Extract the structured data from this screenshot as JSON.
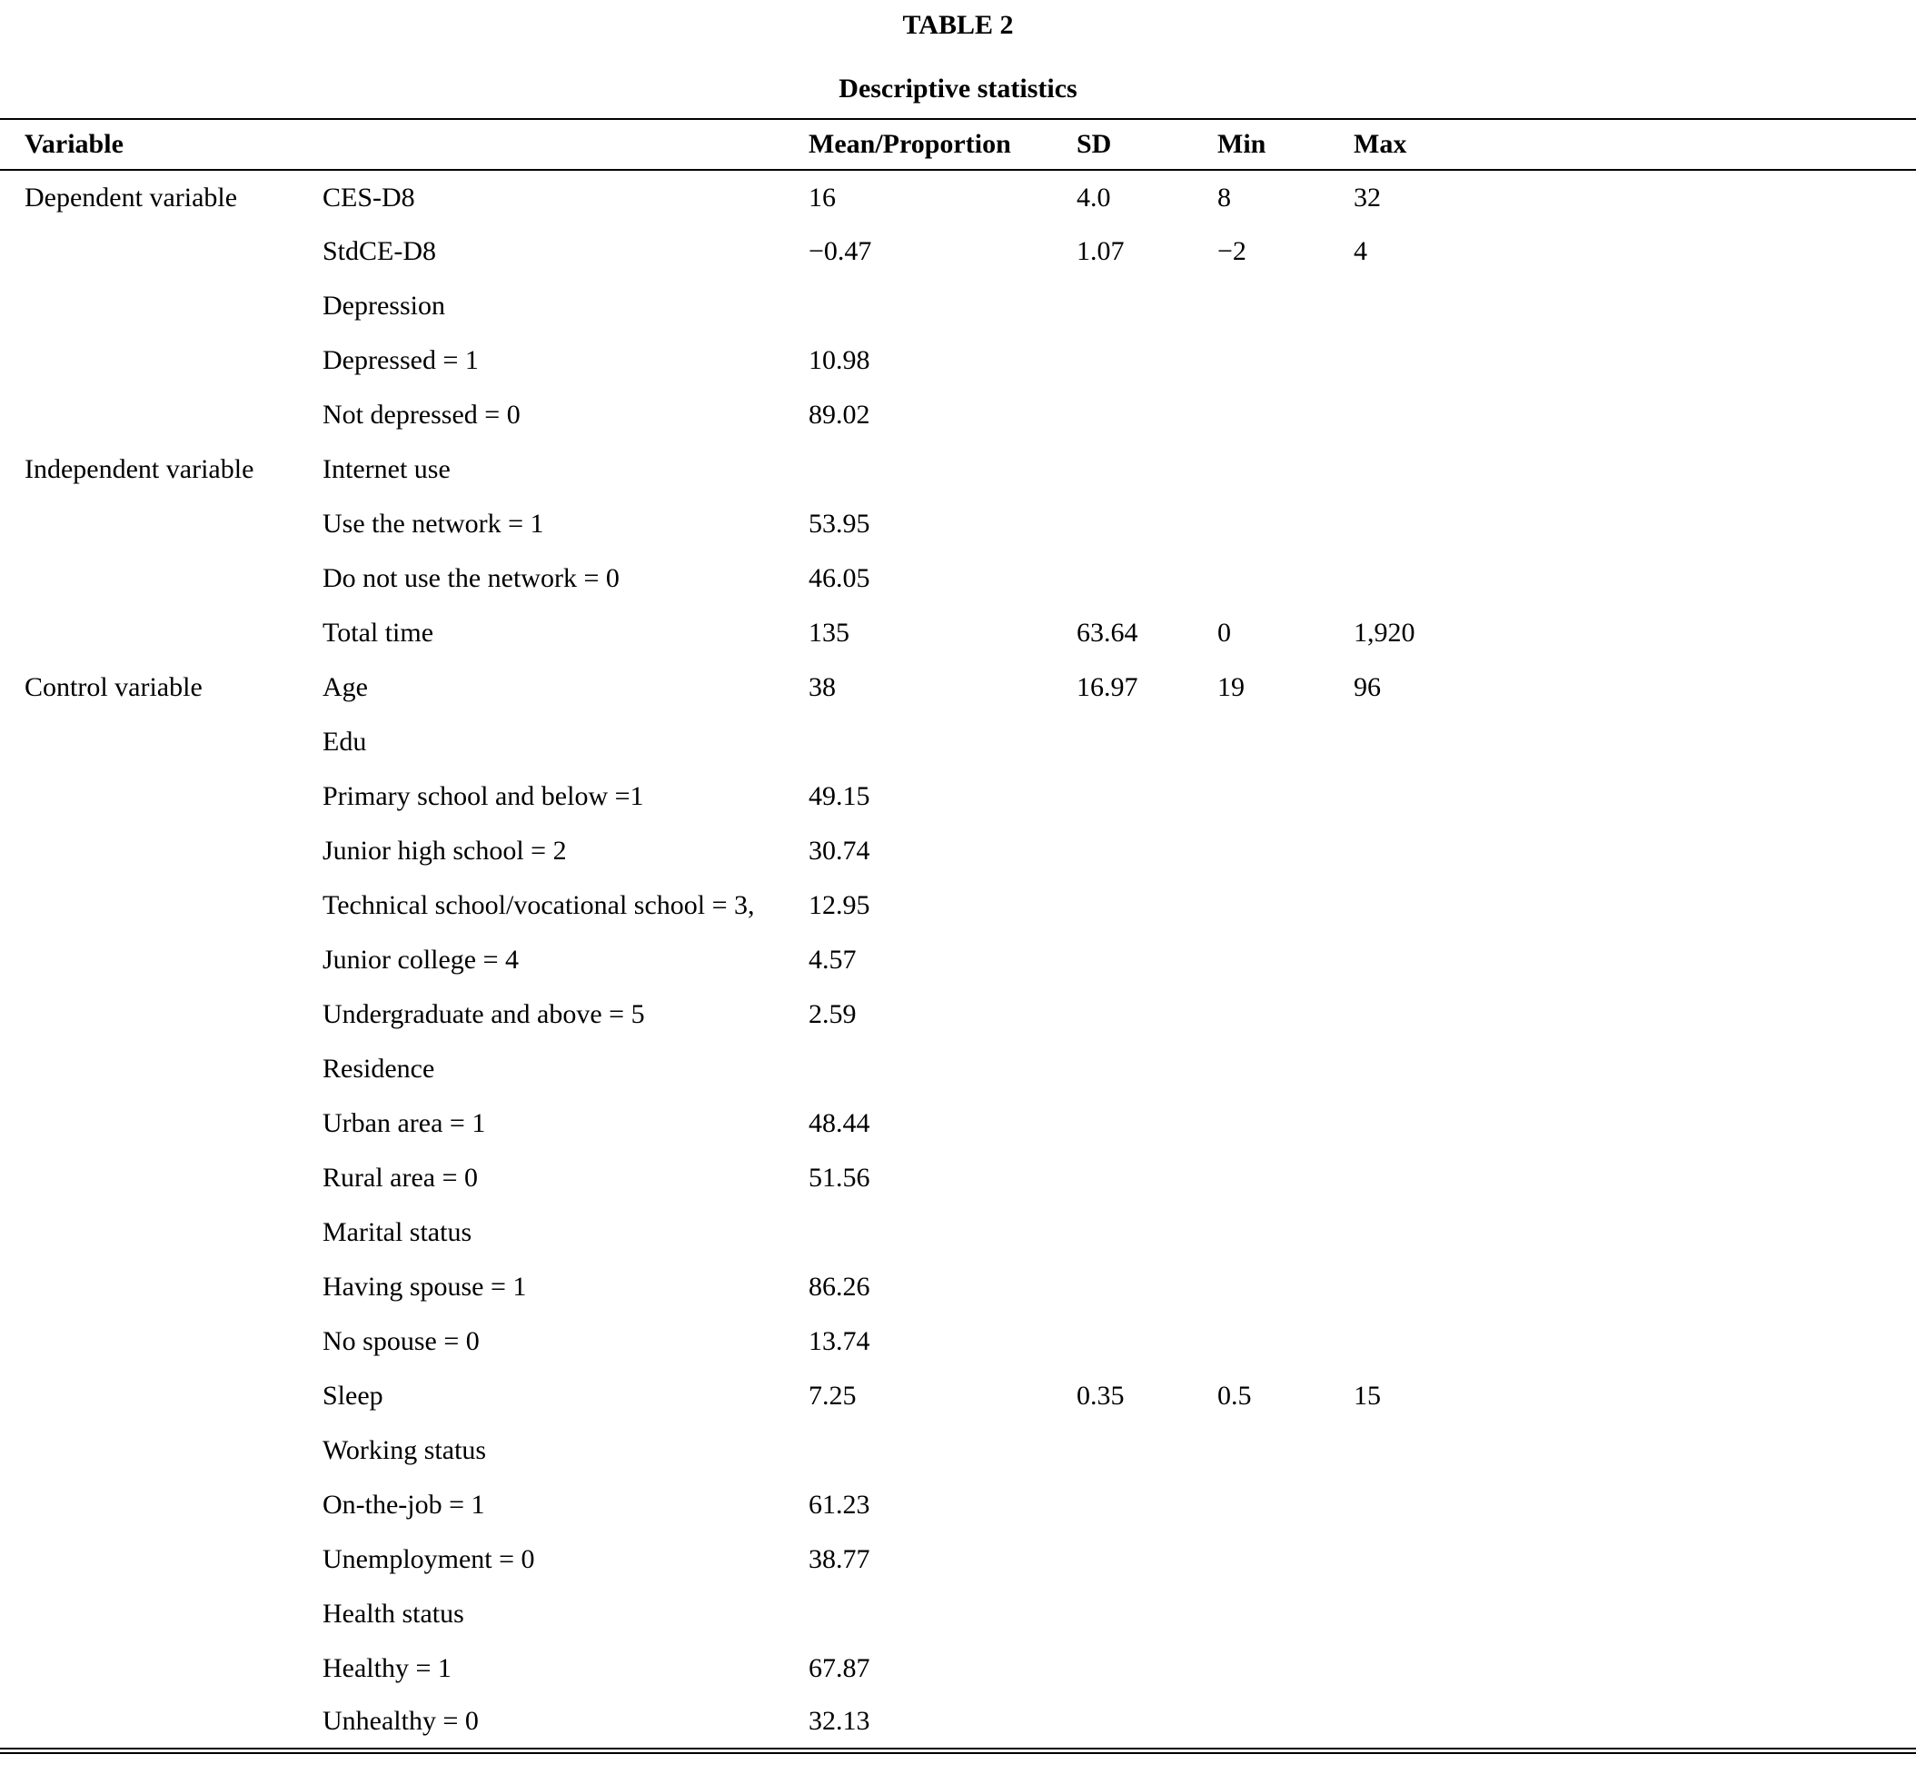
{
  "page": {
    "table_label": "TABLE 2",
    "table_title": "Descriptive statistics"
  },
  "table": {
    "columns": [
      "Variable",
      "",
      "Mean/Proportion",
      "SD",
      "Min",
      "Max"
    ],
    "rows": [
      {
        "group": "Dependent variable",
        "label": "CES-D8",
        "mean": "16",
        "sd": "4.0",
        "min": "8",
        "max": "32"
      },
      {
        "group": "",
        "label": "StdCE-D8",
        "mean": "−0.47",
        "sd": "1.07",
        "min": "−2",
        "max": "4"
      },
      {
        "group": "",
        "label": "Depression",
        "mean": "",
        "sd": "",
        "min": "",
        "max": ""
      },
      {
        "group": "",
        "label": "Depressed = 1",
        "mean": "10.98",
        "sd": "",
        "min": "",
        "max": ""
      },
      {
        "group": "",
        "label": "Not depressed = 0",
        "mean": "89.02",
        "sd": "",
        "min": "",
        "max": ""
      },
      {
        "group": "Independent variable",
        "label": "Internet use",
        "mean": "",
        "sd": "",
        "min": "",
        "max": ""
      },
      {
        "group": "",
        "label": "Use the network = 1",
        "mean": "53.95",
        "sd": "",
        "min": "",
        "max": ""
      },
      {
        "group": "",
        "label": "Do not use the network = 0",
        "mean": "46.05",
        "sd": "",
        "min": "",
        "max": ""
      },
      {
        "group": "",
        "label": "Total time",
        "mean": "135",
        "sd": "63.64",
        "min": "0",
        "max": "1,920"
      },
      {
        "group": "Control variable",
        "label": "Age",
        "mean": "38",
        "sd": "16.97",
        "min": "19",
        "max": "96"
      },
      {
        "group": "",
        "label": "Edu",
        "mean": "",
        "sd": "",
        "min": "",
        "max": ""
      },
      {
        "group": "",
        "label": "Primary school and below =1",
        "mean": "49.15",
        "sd": "",
        "min": "",
        "max": ""
      },
      {
        "group": "",
        "label": "Junior high school = 2",
        "mean": "30.74",
        "sd": "",
        "min": "",
        "max": ""
      },
      {
        "group": "",
        "label": "Technical school/vocational school = 3,",
        "mean": "12.95",
        "sd": "",
        "min": "",
        "max": ""
      },
      {
        "group": "",
        "label": "Junior college = 4",
        "mean": "4.57",
        "sd": "",
        "min": "",
        "max": ""
      },
      {
        "group": "",
        "label": "Undergraduate and above = 5",
        "mean": "2.59",
        "sd": "",
        "min": "",
        "max": ""
      },
      {
        "group": "",
        "label": "Residence",
        "mean": "",
        "sd": "",
        "min": "",
        "max": ""
      },
      {
        "group": "",
        "label": "Urban area = 1",
        "mean": "48.44",
        "sd": "",
        "min": "",
        "max": ""
      },
      {
        "group": "",
        "label": "Rural area = 0",
        "mean": "51.56",
        "sd": "",
        "min": "",
        "max": ""
      },
      {
        "group": "",
        "label": "Marital status",
        "mean": "",
        "sd": "",
        "min": "",
        "max": ""
      },
      {
        "group": "",
        "label": "Having spouse = 1",
        "mean": "86.26",
        "sd": "",
        "min": "",
        "max": ""
      },
      {
        "group": "",
        "label": "No spouse = 0",
        "mean": "13.74",
        "sd": "",
        "min": "",
        "max": ""
      },
      {
        "group": "",
        "label": "Sleep",
        "mean": "7.25",
        "sd": "0.35",
        "min": "0.5",
        "max": "15"
      },
      {
        "group": "",
        "label": "Working status",
        "mean": "",
        "sd": "",
        "min": "",
        "max": ""
      },
      {
        "group": "",
        "label": "On-the-job = 1",
        "mean": "61.23",
        "sd": "",
        "min": "",
        "max": ""
      },
      {
        "group": "",
        "label": "Unemployment = 0",
        "mean": "38.77",
        "sd": "",
        "min": "",
        "max": ""
      },
      {
        "group": "",
        "label": "Health status",
        "mean": "",
        "sd": "",
        "min": "",
        "max": ""
      },
      {
        "group": "",
        "label": "Healthy = 1",
        "mean": "67.87",
        "sd": "",
        "min": "",
        "max": ""
      },
      {
        "group": "",
        "label": "Unhealthy = 0",
        "mean": "32.13",
        "sd": "",
        "min": "",
        "max": ""
      }
    ]
  }
}
